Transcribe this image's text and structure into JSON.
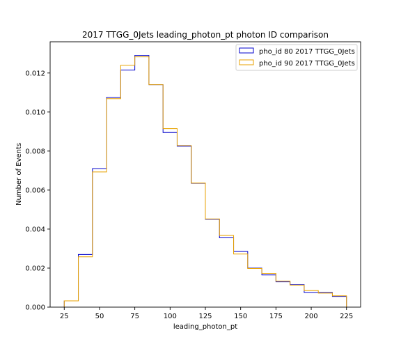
{
  "chart_data": {
    "type": "histogram-step",
    "title": "2017 TTGG_0Jets leading_photon_pt photon ID comparison",
    "xlabel": "leading_photon_pt",
    "ylabel": "Number of Events",
    "xlim": [
      15,
      235
    ],
    "ylim": [
      0,
      0.0136
    ],
    "x_ticks": [
      25,
      50,
      75,
      100,
      125,
      150,
      175,
      200,
      225
    ],
    "x_tick_labels": [
      "25",
      "50",
      "75",
      "100",
      "125",
      "150",
      "175",
      "200",
      "225"
    ],
    "y_ticks": [
      0,
      0.002,
      0.004,
      0.006,
      0.008,
      0.01,
      0.012
    ],
    "y_tick_labels": [
      "0.000",
      "0.002",
      "0.004",
      "0.006",
      "0.008",
      "0.010",
      "0.012"
    ],
    "bin_edges": [
      25,
      35,
      45,
      55,
      65,
      75,
      85,
      95,
      105,
      115,
      125,
      135,
      145,
      155,
      165,
      175,
      185,
      195,
      205,
      215,
      225
    ],
    "grid": false,
    "legend_position": "top-right",
    "series": [
      {
        "name": "pho_id 80 2017 TTGG_0Jets",
        "color": "#0000cc",
        "values": [
          0.00032,
          0.0027,
          0.0071,
          0.01075,
          0.01215,
          0.0129,
          0.0114,
          0.00895,
          0.00825,
          0.00635,
          0.0045,
          0.00355,
          0.00285,
          0.002,
          0.00165,
          0.0013,
          0.00115,
          0.00075,
          0.00075,
          0.00055
        ]
      },
      {
        "name": "pho_id 90 2017 TTGG_0Jets",
        "color": "#e8a200",
        "values": [
          0.00032,
          0.00258,
          0.00693,
          0.01068,
          0.0124,
          0.01283,
          0.0114,
          0.00915,
          0.00828,
          0.00636,
          0.00452,
          0.00367,
          0.00272,
          0.00198,
          0.00173,
          0.00133,
          0.00113,
          0.00085,
          0.00072,
          0.00058
        ]
      }
    ]
  }
}
